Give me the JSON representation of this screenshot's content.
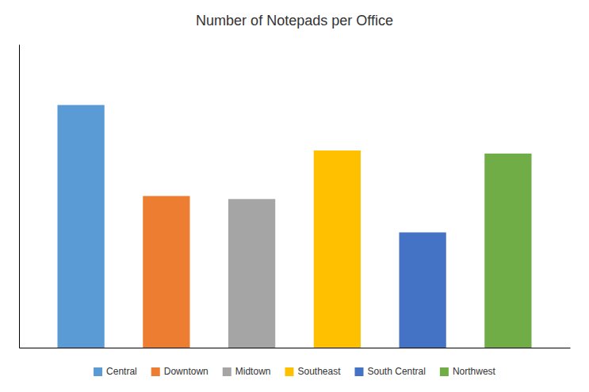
{
  "chart_data": {
    "type": "bar",
    "title": "Number of Notepads per Office",
    "categories": [
      "Central",
      "Downtown",
      "Midtown",
      "Southeast",
      "South Central",
      "Northwest"
    ],
    "values": [
      80,
      50,
      49,
      65,
      38,
      64
    ],
    "colors": [
      "#5B9BD5",
      "#ED7D31",
      "#A5A5A5",
      "#FFC000",
      "#4472C4",
      "#70AD47"
    ],
    "ylim": [
      0,
      100
    ],
    "grid": false,
    "tick_labels": false,
    "legend": "bottom"
  }
}
